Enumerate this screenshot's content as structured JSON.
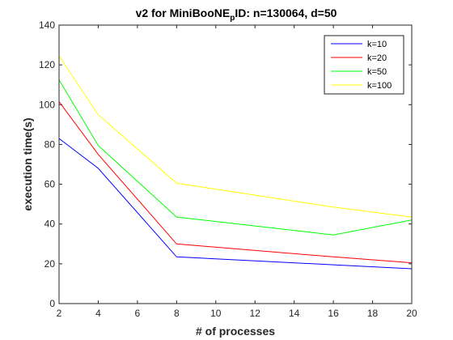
{
  "chart_data": {
    "type": "line",
    "title": "v2 for MiniBooNE",
    "title_subscript": "p",
    "title_suffix": "ID: n=130064, d=50",
    "xlabel": "# of processes",
    "ylabel": "execution time(s)",
    "xlim": [
      2,
      20
    ],
    "ylim": [
      0,
      140
    ],
    "xticks": [
      2,
      4,
      6,
      8,
      10,
      12,
      14,
      16,
      18,
      20
    ],
    "yticks": [
      0,
      20,
      40,
      60,
      80,
      100,
      120,
      140
    ],
    "grid": false,
    "legend_position": "top-right",
    "x": [
      2,
      4,
      8,
      16,
      20
    ],
    "series": [
      {
        "name": "k=10",
        "color": "#0000ff",
        "values": [
          83,
          68,
          23.5,
          19.5,
          17.5
        ]
      },
      {
        "name": "k=20",
        "color": "#ff0000",
        "values": [
          101.5,
          75,
          30,
          23.5,
          20.5
        ]
      },
      {
        "name": "k=50",
        "color": "#00ff00",
        "values": [
          112.5,
          79.5,
          43.5,
          34.5,
          42
        ]
      },
      {
        "name": "k=100",
        "color": "#ffff00",
        "values": [
          124.5,
          95,
          60.5,
          48.5,
          43.5
        ]
      }
    ]
  }
}
